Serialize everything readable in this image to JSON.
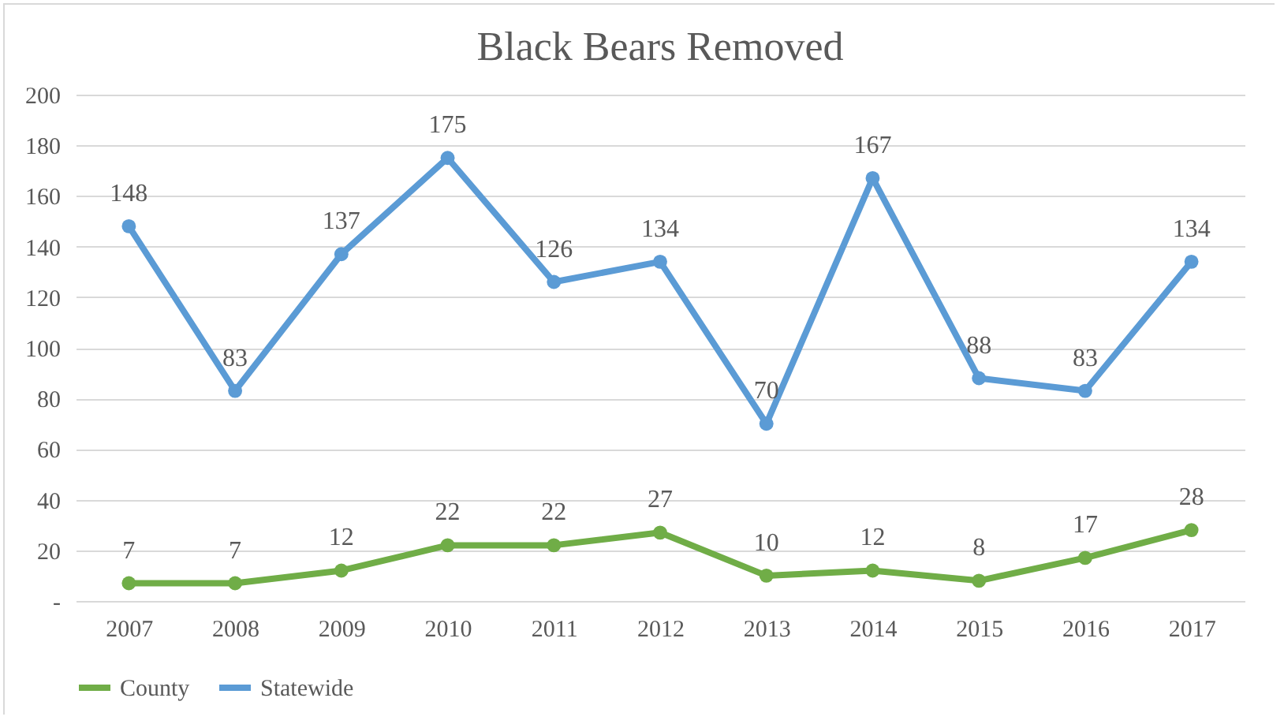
{
  "chart_data": {
    "type": "line",
    "title": "Black Bears Removed",
    "categories": [
      "2007",
      "2008",
      "2009",
      "2010",
      "2011",
      "2012",
      "2013",
      "2014",
      "2015",
      "2016",
      "2017"
    ],
    "series": [
      {
        "name": "County",
        "color": "#70ad47",
        "values": [
          7,
          7,
          12,
          22,
          22,
          27,
          10,
          12,
          8,
          17,
          28
        ]
      },
      {
        "name": "Statewide",
        "color": "#5b9bd5",
        "values": [
          148,
          83,
          137,
          175,
          126,
          134,
          70,
          167,
          88,
          83,
          134
        ]
      }
    ],
    "ylim": [
      0,
      200
    ],
    "yticks": [
      {
        "value": 0,
        "label": "-"
      },
      20,
      40,
      60,
      80,
      100,
      120,
      140,
      160,
      180,
      200
    ],
    "grid": "y",
    "legend": "bottom",
    "marker": "circle",
    "line_style": "solid",
    "data_labels": true
  }
}
